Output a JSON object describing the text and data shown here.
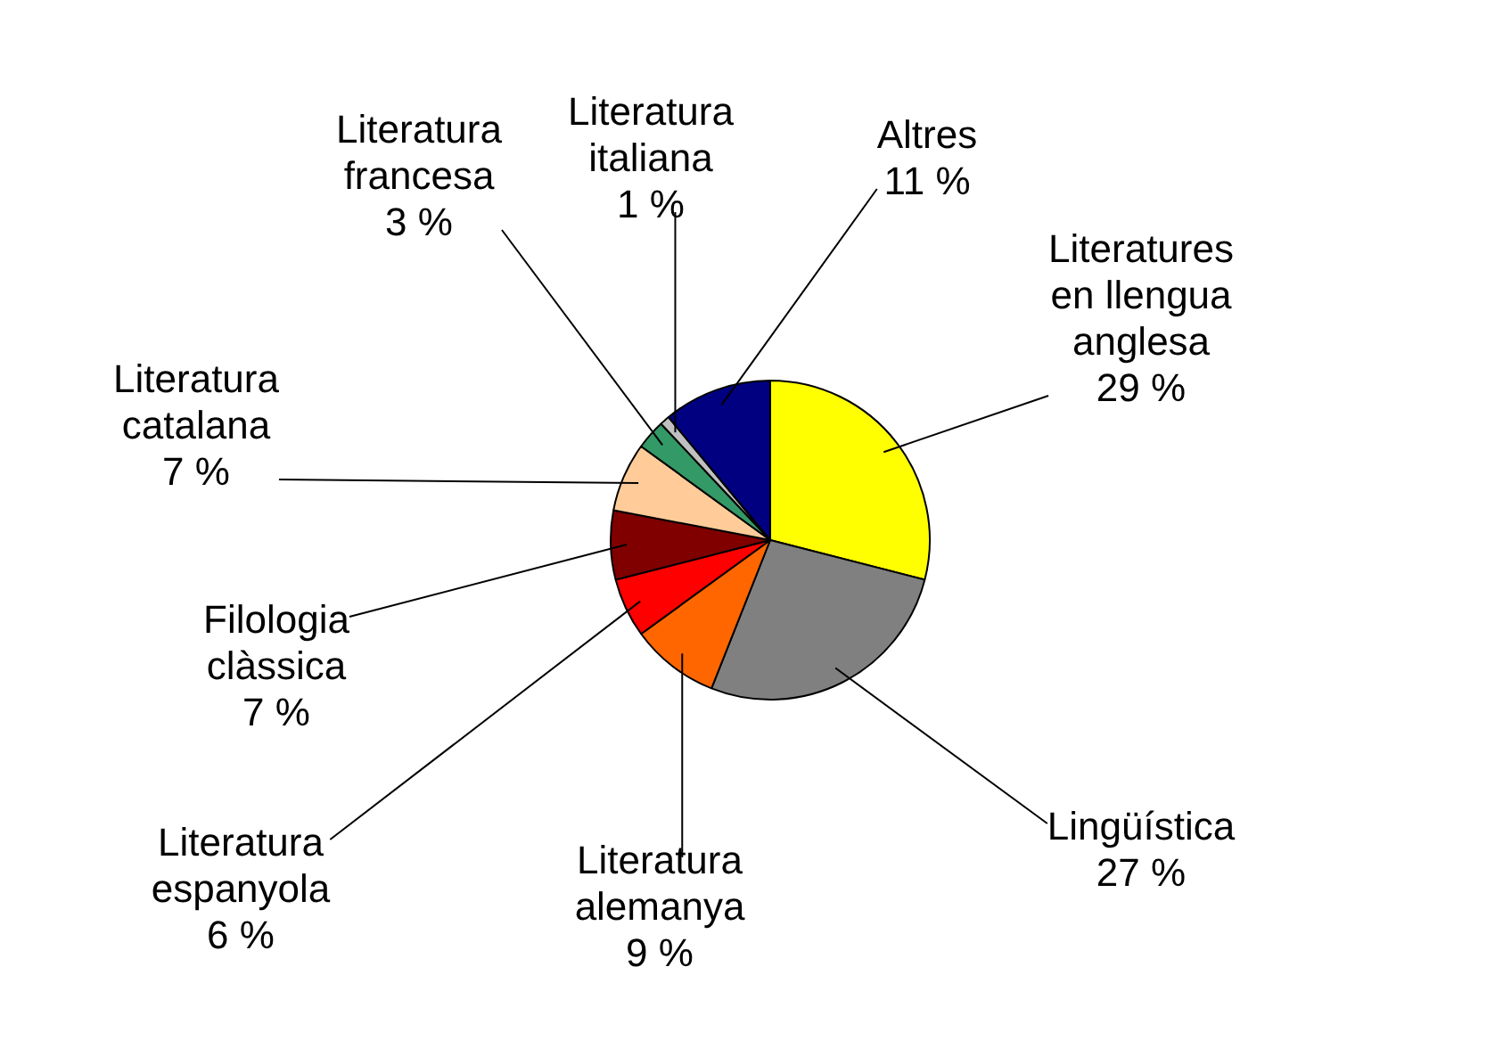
{
  "chart_data": {
    "type": "pie",
    "categories": [
      "Literatures en llengua anglesa",
      "Lingüística",
      "Literatura alemanya",
      "Literatura espanyola",
      "Filologia clàssica",
      "Literatura catalana",
      "Literatura francesa",
      "Literatura italiana",
      "Altres"
    ],
    "values": [
      29,
      27,
      9,
      6,
      7,
      7,
      3,
      1,
      11
    ],
    "value_labels": [
      "29 %",
      "27 %",
      "9 %",
      "6 %",
      "7 %",
      "7 %",
      "3 %",
      "1 %",
      "11 %"
    ],
    "colors": [
      "#ffff00",
      "#808080",
      "#ff6600",
      "#ff0000",
      "#800000",
      "#ffcc99",
      "#339966",
      "#c0c0c0",
      "#000080"
    ],
    "legend": false
  }
}
